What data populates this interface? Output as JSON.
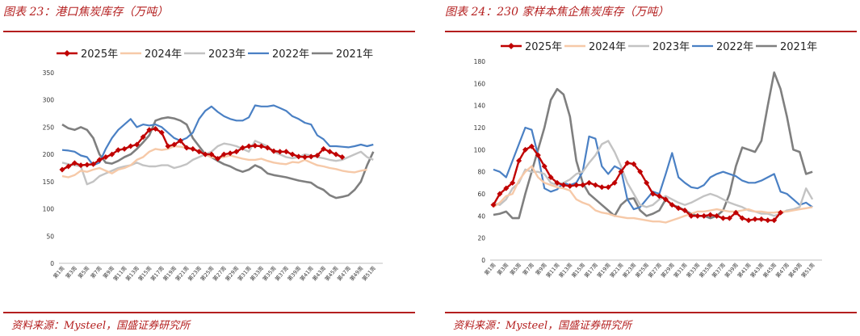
{
  "left": {
    "title": "图表 23：港口焦炭库存（万吨）",
    "source": "资料来源：Mysteel，国盛证券研究所"
  },
  "right": {
    "title": "图表 24：230 家样本焦企焦炭库存（万吨）",
    "source": "资料来源：Mysteel，国盛证券研究所"
  },
  "colors": {
    "accent": "#b41f1f",
    "2025年": "#c00000",
    "2024年": "#f6c9a8",
    "2023年": "#c3c3c3",
    "2022年": "#4a80c4",
    "2021年": "#7f7f7f"
  },
  "chart_data": [
    {
      "type": "line",
      "title": "港口焦炭库存（万吨）",
      "xlabel": "",
      "ylabel": "万吨",
      "ylim": [
        0,
        350
      ],
      "yticks": [
        0,
        50,
        100,
        150,
        200,
        250,
        300,
        350
      ],
      "xtick_labels": [
        "第1周",
        "第3周",
        "第5周",
        "第7周",
        "第9周",
        "第11周",
        "第13周",
        "第15周",
        "第17周",
        "第19周",
        "第21周",
        "第23周",
        "第25周",
        "第27周",
        "第29周",
        "第31周",
        "第33周",
        "第35周",
        "第37周",
        "第39周",
        "第41周",
        "第43周",
        "第45周",
        "第47周",
        "第49周",
        "第51周"
      ],
      "legend": "top-left",
      "series": [
        {
          "name": "2025年",
          "values": [
            172,
            178,
            184,
            180,
            181,
            182,
            190,
            195,
            200,
            208,
            210,
            215,
            218,
            232,
            245,
            247,
            240,
            215,
            218,
            225,
            212,
            210,
            205,
            200,
            200,
            192,
            200,
            202,
            205,
            212,
            215,
            216,
            215,
            212,
            206,
            205,
            205,
            200,
            196,
            195,
            196,
            198,
            210,
            205,
            200,
            195
          ]
        },
        {
          "name": "2024年",
          "values": [
            160,
            158,
            162,
            170,
            168,
            172,
            175,
            170,
            165,
            172,
            175,
            180,
            190,
            195,
            205,
            210,
            208,
            210,
            215,
            214,
            212,
            210,
            205,
            200,
            195,
            193,
            195,
            198,
            195,
            192,
            190,
            190,
            192,
            188,
            185,
            183,
            182,
            186,
            185,
            190,
            185,
            180,
            178,
            175,
            173,
            170,
            168,
            167,
            170,
            172
          ]
        },
        {
          "name": "2023年",
          "values": [
            185,
            182,
            180,
            178,
            145,
            150,
            160,
            165,
            170,
            175,
            178,
            180,
            185,
            180,
            178,
            178,
            180,
            180,
            175,
            178,
            182,
            190,
            195,
            200,
            205,
            215,
            220,
            218,
            215,
            210,
            205,
            225,
            220,
            215,
            205,
            200,
            195,
            193,
            195,
            200,
            198,
            195,
            193,
            190,
            188,
            190,
            195,
            200,
            205,
            195,
            190
          ]
        },
        {
          "name": "2022年",
          "values": [
            208,
            207,
            205,
            198,
            195,
            180,
            185,
            210,
            230,
            245,
            255,
            265,
            250,
            255,
            253,
            255,
            250,
            240,
            230,
            225,
            230,
            240,
            265,
            280,
            288,
            278,
            270,
            265,
            262,
            262,
            268,
            290,
            288,
            288,
            290,
            285,
            280,
            270,
            265,
            258,
            255,
            235,
            228,
            215,
            215,
            214,
            213,
            215,
            218,
            215,
            218
          ]
        },
        {
          "name": "2021年",
          "values": [
            255,
            248,
            245,
            250,
            245,
            230,
            200,
            185,
            183,
            188,
            195,
            200,
            210,
            222,
            235,
            262,
            266,
            268,
            266,
            262,
            255,
            230,
            215,
            200,
            195,
            188,
            182,
            178,
            172,
            168,
            172,
            180,
            175,
            165,
            162,
            160,
            158,
            155,
            152,
            150,
            148,
            140,
            135,
            125,
            120,
            122,
            125,
            135,
            150,
            180,
            205
          ]
        }
      ]
    },
    {
      "type": "line",
      "title": "230 家样本焦企焦炭库存（万吨）",
      "xlabel": "",
      "ylabel": "万吨",
      "ylim": [
        0,
        180
      ],
      "yticks": [
        0,
        20,
        40,
        60,
        80,
        100,
        120,
        140,
        160,
        180
      ],
      "xtick_labels": [
        "第1周",
        "第3周",
        "第5周",
        "第7周",
        "第9周",
        "第11周",
        "第13周",
        "第15周",
        "第17周",
        "第19周",
        "第21周",
        "第23周",
        "第25周",
        "第27周",
        "第29周",
        "第31周",
        "第33周",
        "第35周",
        "第37周",
        "第39周",
        "第41周",
        "第43周",
        "第45周",
        "第47周",
        "第49周",
        "第51周"
      ],
      "legend": "top",
      "series": [
        {
          "name": "2025年",
          "values": [
            50,
            60,
            65,
            70,
            90,
            100,
            103,
            95,
            85,
            75,
            70,
            68,
            67,
            68,
            68,
            70,
            68,
            66,
            66,
            70,
            80,
            88,
            87,
            80,
            70,
            60,
            58,
            55,
            50,
            47,
            45,
            40,
            40,
            40,
            41,
            40,
            38,
            38,
            43,
            38,
            36,
            37,
            37,
            36,
            36,
            43
          ]
        },
        {
          "name": "2024年",
          "values": [
            48,
            52,
            58,
            60,
            72,
            80,
            85,
            75,
            70,
            68,
            66,
            65,
            63,
            55,
            52,
            50,
            45,
            43,
            42,
            40,
            39,
            38,
            38,
            37,
            36,
            35,
            35,
            34,
            36,
            38,
            40,
            42,
            44,
            44,
            45,
            46,
            45,
            44,
            44,
            45,
            46,
            44,
            44,
            43,
            43,
            44,
            44,
            45,
            46,
            47,
            48
          ]
        },
        {
          "name": "2023年",
          "values": [
            52,
            50,
            55,
            65,
            70,
            82,
            80,
            80,
            78,
            70,
            68,
            70,
            73,
            78,
            80,
            88,
            95,
            105,
            108,
            98,
            85,
            70,
            60,
            50,
            48,
            50,
            55,
            58,
            55,
            52,
            50,
            52,
            55,
            58,
            60,
            58,
            55,
            52,
            50,
            48,
            45,
            44,
            42,
            42,
            40,
            42,
            45,
            46,
            48,
            65,
            55
          ]
        },
        {
          "name": "2022年",
          "values": [
            82,
            80,
            75,
            90,
            105,
            120,
            118,
            95,
            65,
            62,
            64,
            70,
            68,
            70,
            80,
            112,
            110,
            85,
            78,
            85,
            82,
            55,
            46,
            48,
            55,
            62,
            60,
            78,
            97,
            75,
            70,
            66,
            65,
            68,
            75,
            78,
            80,
            78,
            76,
            72,
            70,
            70,
            72,
            75,
            78,
            62,
            60,
            55,
            50,
            52,
            48
          ]
        },
        {
          "name": "2021年",
          "values": [
            41,
            42,
            44,
            38,
            38,
            60,
            80,
            100,
            120,
            145,
            155,
            150,
            130,
            90,
            70,
            60,
            55,
            50,
            45,
            40,
            50,
            55,
            56,
            45,
            40,
            42,
            45,
            55,
            50,
            48,
            45,
            42,
            40,
            40,
            38,
            40,
            45,
            60,
            85,
            102,
            100,
            98,
            108,
            140,
            170,
            155,
            130,
            100,
            98,
            78,
            80
          ]
        }
      ]
    }
  ]
}
